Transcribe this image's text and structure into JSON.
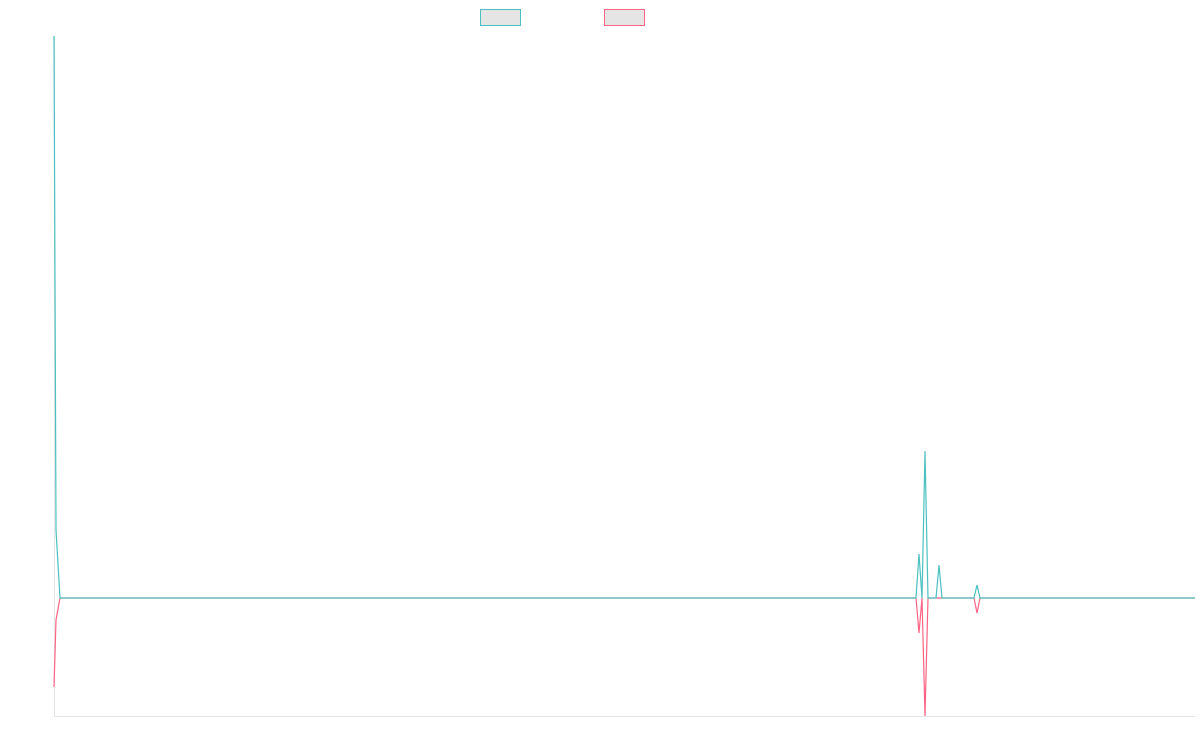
{
  "chart_data": {
    "type": "line",
    "title": "",
    "xlabel": "",
    "ylabel": "",
    "xlim": [
      0,
      1141
    ],
    "ylim": [
      -118,
      562
    ],
    "grid": false,
    "legend_placement": "top-center",
    "series": [
      {
        "name": "",
        "color": "#4bc0c0",
        "legend_fill": "#e5e5e5",
        "points": [
          [
            0,
            562
          ],
          [
            2,
            68
          ],
          [
            6,
            0
          ],
          [
            862,
            0
          ],
          [
            865,
            44
          ],
          [
            868,
            0
          ],
          [
            871,
            147
          ],
          [
            874,
            0
          ],
          [
            882,
            0
          ],
          [
            885,
            33
          ],
          [
            888,
            0
          ],
          [
            920,
            0
          ],
          [
            923,
            13
          ],
          [
            926,
            0
          ],
          [
            1141,
            0
          ]
        ]
      },
      {
        "name": "",
        "color": "#ff6384",
        "legend_fill": "#e5e5e5",
        "points": [
          [
            0,
            -89
          ],
          [
            2,
            -22
          ],
          [
            6,
            0
          ],
          [
            862,
            0
          ],
          [
            865,
            -35
          ],
          [
            868,
            0
          ],
          [
            871,
            -118
          ],
          [
            874,
            0
          ],
          [
            920,
            0
          ],
          [
            923,
            -15
          ],
          [
            926,
            0
          ],
          [
            1141,
            0
          ]
        ]
      }
    ]
  }
}
